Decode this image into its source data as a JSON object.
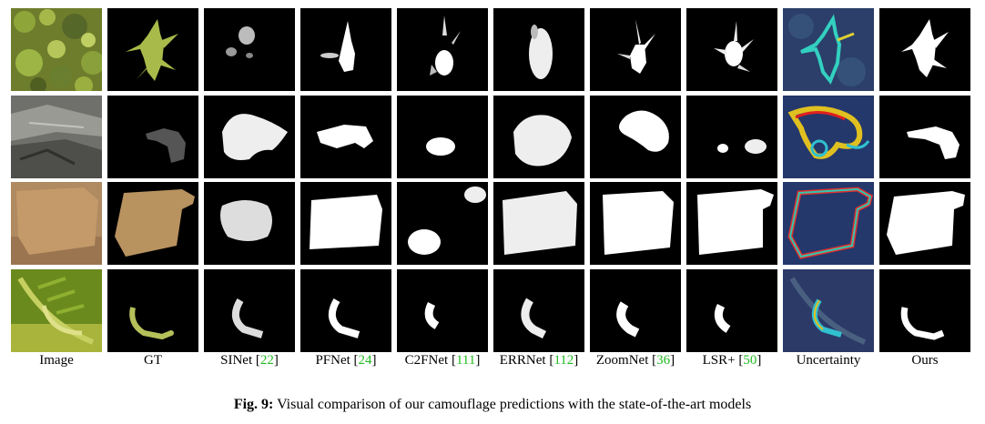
{
  "columns": [
    {
      "name": "Image",
      "ref": ""
    },
    {
      "name": "GT",
      "ref": ""
    },
    {
      "name": "SINet",
      "ref": "22"
    },
    {
      "name": "PFNet",
      "ref": "24"
    },
    {
      "name": "C2FNet",
      "ref": "111"
    },
    {
      "name": "ERRNet",
      "ref": "112"
    },
    {
      "name": "ZoomNet",
      "ref": "36"
    },
    {
      "name": "LSR+",
      "ref": "50"
    },
    {
      "name": "Uncertainty",
      "ref": ""
    },
    {
      "name": "Ours",
      "ref": ""
    }
  ],
  "caption": {
    "prefix": "Fig. 9:",
    "text": "Visual comparison of our camouflage predictions with the state-of-the-art models"
  },
  "colors": {
    "citation": "#22bb22",
    "mask_background": "#000000",
    "mask_foreground": "#ffffff"
  }
}
